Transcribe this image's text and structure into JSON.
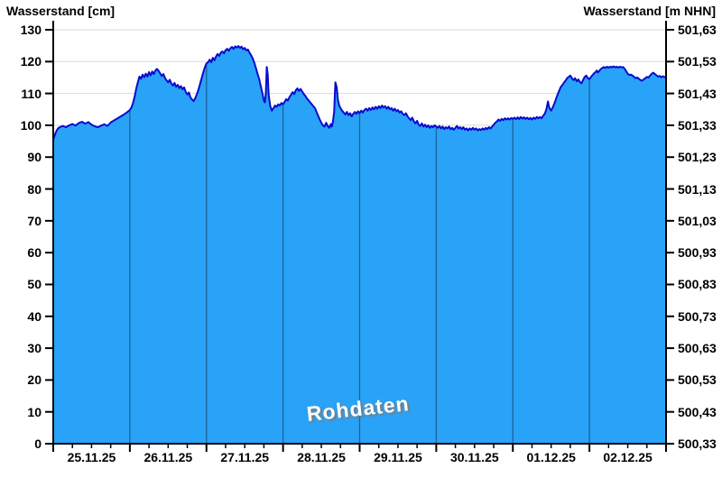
{
  "header": {
    "left_axis_title": "Wasserstand [cm]",
    "right_axis_title": "Wasserstand [m NHN]"
  },
  "watermark": "Rohdaten",
  "colors": {
    "area_fill": "#29a3f7",
    "line_stroke": "#0a0ace",
    "day_gridline": "rgba(20,45,75,0.55)",
    "h_gridline": "#d9d9d9",
    "axis": "#000000",
    "watermark_text": "#ffffff",
    "watermark_shadow": "#7a7a7a"
  },
  "chart_data": {
    "type": "area",
    "title": "",
    "left_axis_label": "Wasserstand [cm]",
    "right_axis_label": "Wasserstand [m NHN]",
    "x_unit": "hours since 25.11.25 00:00",
    "xlim": [
      0,
      192
    ],
    "ylim_left_cm": [
      0,
      130
    ],
    "ylim_right_m_nhn": [
      500.33,
      501.63
    ],
    "grid": "horizontal-light, vertical day separators inside area",
    "legend": "none",
    "left_tick_values_cm": [
      0,
      10,
      20,
      30,
      40,
      50,
      60,
      70,
      80,
      90,
      100,
      110,
      120,
      130
    ],
    "right_tick_labels_m_nhn": [
      "500,33",
      "500,43",
      "500,53",
      "500,63",
      "500,73",
      "500,83",
      "500,93",
      "501,03",
      "501,13",
      "501,23",
      "501,33",
      "501,43",
      "501,53",
      "501,63"
    ],
    "x_labels": [
      "25.11.25",
      "26.11.25",
      "27.11.25",
      "28.11.25",
      "29.11.25",
      "30.11.25",
      "01.12.25",
      "02.12.25"
    ],
    "x_day_boundaries_hours": [
      0,
      24,
      48,
      72,
      96,
      120,
      144,
      168,
      192
    ],
    "x_minor_tick_step_hours": 6,
    "points": [
      [
        0,
        95.5
      ],
      [
        0.5,
        97.0
      ],
      [
        1,
        98.2
      ],
      [
        1.5,
        99.0
      ],
      [
        2,
        99.4
      ],
      [
        3,
        99.8
      ],
      [
        4,
        99.4
      ],
      [
        5,
        100.0
      ],
      [
        6,
        100.4
      ],
      [
        7,
        99.9
      ],
      [
        8,
        100.7
      ],
      [
        9,
        101.1
      ],
      [
        10,
        100.5
      ],
      [
        11,
        101.0
      ],
      [
        12,
        100.2
      ],
      [
        13,
        99.7
      ],
      [
        14,
        99.4
      ],
      [
        15,
        99.9
      ],
      [
        16,
        100.3
      ],
      [
        17,
        99.8
      ],
      [
        18,
        100.9
      ],
      [
        19,
        101.5
      ],
      [
        20,
        102.1
      ],
      [
        21,
        102.7
      ],
      [
        22,
        103.3
      ],
      [
        23,
        104.0
      ],
      [
        24,
        104.8
      ],
      [
        24.5,
        105.6
      ],
      [
        25,
        107.0
      ],
      [
        25.5,
        109.0
      ],
      [
        26,
        111.5
      ],
      [
        26.5,
        113.5
      ],
      [
        27,
        115.3
      ],
      [
        27.5,
        114.6
      ],
      [
        28,
        115.9
      ],
      [
        28.5,
        115.1
      ],
      [
        29,
        116.2
      ],
      [
        29.5,
        115.3
      ],
      [
        30,
        116.7
      ],
      [
        30.5,
        115.7
      ],
      [
        31,
        116.9
      ],
      [
        31.5,
        116.1
      ],
      [
        32,
        117.2
      ],
      [
        32.5,
        117.7
      ],
      [
        33,
        117.1
      ],
      [
        33.5,
        116.3
      ],
      [
        34,
        115.5
      ],
      [
        34.5,
        116.1
      ],
      [
        35,
        114.9
      ],
      [
        35.5,
        114.1
      ],
      [
        36,
        113.5
      ],
      [
        36.5,
        114.3
      ],
      [
        37,
        113.1
      ],
      [
        37.5,
        112.5
      ],
      [
        38,
        113.3
      ],
      [
        38.5,
        112.1
      ],
      [
        39,
        112.7
      ],
      [
        39.5,
        111.7
      ],
      [
        40,
        112.3
      ],
      [
        40.5,
        111.3
      ],
      [
        41,
        111.9
      ],
      [
        41.5,
        110.5
      ],
      [
        42,
        109.7
      ],
      [
        42.5,
        110.3
      ],
      [
        43,
        108.7
      ],
      [
        43.5,
        108.1
      ],
      [
        44,
        107.6
      ],
      [
        44.5,
        108.5
      ],
      [
        45,
        109.8
      ],
      [
        45.5,
        111.2
      ],
      [
        46,
        113.0
      ],
      [
        46.5,
        114.8
      ],
      [
        47,
        116.6
      ],
      [
        47.5,
        118.2
      ],
      [
        48,
        119.4
      ],
      [
        48.5,
        119.8
      ],
      [
        49,
        120.6
      ],
      [
        49.5,
        119.8
      ],
      [
        50,
        121.2
      ],
      [
        50.5,
        120.4
      ],
      [
        51,
        121.6
      ],
      [
        51.5,
        122.4
      ],
      [
        52,
        121.8
      ],
      [
        52.5,
        122.8
      ],
      [
        53,
        123.2
      ],
      [
        53.5,
        122.6
      ],
      [
        54,
        123.6
      ],
      [
        54.5,
        124.0
      ],
      [
        55,
        123.4
      ],
      [
        55.5,
        124.2
      ],
      [
        56,
        124.6
      ],
      [
        56.5,
        124.0
      ],
      [
        57,
        124.8
      ],
      [
        57.5,
        124.4
      ],
      [
        58,
        124.9
      ],
      [
        58.5,
        124.3
      ],
      [
        59,
        124.7
      ],
      [
        59.5,
        123.9
      ],
      [
        60,
        124.3
      ],
      [
        60.5,
        123.5
      ],
      [
        61,
        123.8
      ],
      [
        61.5,
        122.8
      ],
      [
        62,
        122.0
      ],
      [
        62.5,
        121.0
      ],
      [
        63,
        119.6
      ],
      [
        63.5,
        118.0
      ],
      [
        64,
        116.2
      ],
      [
        64.5,
        114.6
      ],
      [
        65,
        112.4
      ],
      [
        65.5,
        110.2
      ],
      [
        66,
        107.8
      ],
      [
        66.3,
        107.2
      ],
      [
        66.6,
        110.0
      ],
      [
        66.9,
        118.3
      ],
      [
        67.2,
        116.0
      ],
      [
        67.5,
        109.5
      ],
      [
        68,
        106.0
      ],
      [
        68.5,
        104.6
      ],
      [
        69,
        105.4
      ],
      [
        69.5,
        106.2
      ],
      [
        70,
        105.8
      ],
      [
        70.5,
        106.6
      ],
      [
        71,
        106.2
      ],
      [
        71.5,
        107.0
      ],
      [
        72,
        106.6
      ],
      [
        72.5,
        107.4
      ],
      [
        73,
        108.2
      ],
      [
        73.5,
        107.8
      ],
      [
        74,
        108.8
      ],
      [
        74.5,
        109.6
      ],
      [
        75,
        110.4
      ],
      [
        75.5,
        109.8
      ],
      [
        76,
        111.0
      ],
      [
        76.5,
        111.6
      ],
      [
        77,
        110.8
      ],
      [
        77.5,
        111.4
      ],
      [
        78,
        110.6
      ],
      [
        78.5,
        109.8
      ],
      [
        79,
        109.2
      ],
      [
        79.5,
        108.4
      ],
      [
        80,
        107.8
      ],
      [
        80.5,
        107.2
      ],
      [
        81,
        106.6
      ],
      [
        81.5,
        106.0
      ],
      [
        82,
        105.4
      ],
      [
        82.5,
        104.2
      ],
      [
        83,
        103.0
      ],
      [
        83.5,
        101.8
      ],
      [
        84,
        100.8
      ],
      [
        84.5,
        100.0
      ],
      [
        85,
        99.6
      ],
      [
        85.5,
        100.8
      ],
      [
        86,
        99.8
      ],
      [
        86.5,
        99.2
      ],
      [
        87,
        100.4
      ],
      [
        87.3,
        99.6
      ],
      [
        87.6,
        101.0
      ],
      [
        88,
        104.0
      ],
      [
        88.4,
        113.5
      ],
      [
        88.8,
        112.0
      ],
      [
        89.2,
        108.0
      ],
      [
        89.6,
        106.2
      ],
      [
        90,
        105.4
      ],
      [
        90.5,
        104.6
      ],
      [
        91,
        104.0
      ],
      [
        91.5,
        103.4
      ],
      [
        92,
        104.2
      ],
      [
        92.5,
        103.2
      ],
      [
        93,
        103.8
      ],
      [
        93.5,
        102.8
      ],
      [
        94,
        103.6
      ],
      [
        94.5,
        104.2
      ],
      [
        95,
        103.6
      ],
      [
        95.5,
        104.4
      ],
      [
        96,
        103.8
      ],
      [
        96.5,
        104.6
      ],
      [
        97,
        104.0
      ],
      [
        97.5,
        104.8
      ],
      [
        98,
        105.2
      ],
      [
        98.5,
        104.6
      ],
      [
        99,
        105.4
      ],
      [
        99.5,
        104.8
      ],
      [
        100,
        105.6
      ],
      [
        100.5,
        105.0
      ],
      [
        101,
        105.8
      ],
      [
        101.5,
        105.2
      ],
      [
        102,
        106.0
      ],
      [
        102.5,
        105.4
      ],
      [
        103,
        106.2
      ],
      [
        103.5,
        105.6
      ],
      [
        104,
        106.0
      ],
      [
        104.5,
        105.2
      ],
      [
        105,
        105.8
      ],
      [
        105.5,
        105.0
      ],
      [
        106,
        105.4
      ],
      [
        106.5,
        104.6
      ],
      [
        107,
        105.2
      ],
      [
        107.5,
        104.4
      ],
      [
        108,
        104.8
      ],
      [
        108.5,
        104.0
      ],
      [
        109,
        104.4
      ],
      [
        109.5,
        103.6
      ],
      [
        110,
        103.2
      ],
      [
        110.5,
        103.8
      ],
      [
        111,
        102.8
      ],
      [
        111.5,
        102.2
      ],
      [
        112,
        101.6
      ],
      [
        112.5,
        102.4
      ],
      [
        113,
        101.2
      ],
      [
        113.5,
        100.6
      ],
      [
        114,
        101.4
      ],
      [
        114.5,
        100.2
      ],
      [
        115,
        99.8
      ],
      [
        115.5,
        100.6
      ],
      [
        116,
        99.6
      ],
      [
        116.5,
        100.2
      ],
      [
        117,
        99.4
      ],
      [
        117.5,
        100.0
      ],
      [
        118,
        99.2
      ],
      [
        118.5,
        99.8
      ],
      [
        119,
        99.4
      ],
      [
        119.5,
        100.0
      ],
      [
        120,
        99.6
      ],
      [
        120.5,
        99.2
      ],
      [
        121,
        99.8
      ],
      [
        121.5,
        99.0
      ],
      [
        122,
        99.6
      ],
      [
        122.5,
        98.8
      ],
      [
        123,
        99.4
      ],
      [
        123.5,
        99.0
      ],
      [
        124,
        99.6
      ],
      [
        124.5,
        98.8
      ],
      [
        125,
        99.2
      ],
      [
        125.5,
        98.6
      ],
      [
        126,
        99.2
      ],
      [
        126.5,
        99.8
      ],
      [
        127,
        99.0
      ],
      [
        127.5,
        99.4
      ],
      [
        128,
        98.8
      ],
      [
        128.5,
        99.4
      ],
      [
        129,
        98.6
      ],
      [
        129.5,
        99.0
      ],
      [
        130,
        98.4
      ],
      [
        130.5,
        99.0
      ],
      [
        131,
        98.6
      ],
      [
        131.5,
        99.2
      ],
      [
        132,
        98.6
      ],
      [
        132.5,
        99.0
      ],
      [
        133,
        98.4
      ],
      [
        133.5,
        98.8
      ],
      [
        134,
        98.5
      ],
      [
        134.5,
        99.0
      ],
      [
        135,
        98.6
      ],
      [
        135.5,
        99.2
      ],
      [
        136,
        98.8
      ],
      [
        136.5,
        99.4
      ],
      [
        137,
        99.0
      ],
      [
        137.5,
        99.6
      ],
      [
        138,
        100.2
      ],
      [
        138.5,
        100.8
      ],
      [
        139,
        101.2
      ],
      [
        139.5,
        101.8
      ],
      [
        140,
        101.4
      ],
      [
        140.5,
        102.0
      ],
      [
        141,
        101.6
      ],
      [
        141.5,
        102.2
      ],
      [
        142,
        101.8
      ],
      [
        142.5,
        102.2
      ],
      [
        143,
        101.8
      ],
      [
        143.5,
        102.3
      ],
      [
        144,
        102.0
      ],
      [
        144.5,
        102.4
      ],
      [
        145,
        101.9
      ],
      [
        145.5,
        102.5
      ],
      [
        146,
        102.0
      ],
      [
        146.5,
        102.6
      ],
      [
        147,
        102.1
      ],
      [
        147.5,
        102.5
      ],
      [
        148,
        102.0
      ],
      [
        148.5,
        102.4
      ],
      [
        149,
        101.9
      ],
      [
        149.5,
        102.3
      ],
      [
        150,
        101.8
      ],
      [
        150.5,
        102.4
      ],
      [
        151,
        102.0
      ],
      [
        151.5,
        102.6
      ],
      [
        152,
        102.2
      ],
      [
        152.5,
        102.6
      ],
      [
        153,
        102.2
      ],
      [
        153.5,
        103.0
      ],
      [
        154,
        103.6
      ],
      [
        154.5,
        105.0
      ],
      [
        155,
        107.5
      ],
      [
        155.4,
        105.6
      ],
      [
        156,
        104.6
      ],
      [
        156.5,
        105.6
      ],
      [
        157,
        106.8
      ],
      [
        157.5,
        108.2
      ],
      [
        158,
        109.6
      ],
      [
        158.5,
        110.8
      ],
      [
        159,
        112.0
      ],
      [
        159.5,
        112.6
      ],
      [
        160,
        113.4
      ],
      [
        160.5,
        114.0
      ],
      [
        161,
        114.8
      ],
      [
        161.5,
        115.2
      ],
      [
        162,
        115.6
      ],
      [
        162.5,
        114.8
      ],
      [
        163,
        114.2
      ],
      [
        163.5,
        114.8
      ],
      [
        164,
        113.8
      ],
      [
        164.5,
        114.4
      ],
      [
        165,
        113.6
      ],
      [
        165.5,
        113.2
      ],
      [
        166,
        114.2
      ],
      [
        166.5,
        115.2
      ],
      [
        167,
        115.6
      ],
      [
        167.5,
        114.8
      ],
      [
        168,
        114.5
      ],
      [
        168.5,
        115.2
      ],
      [
        169,
        115.8
      ],
      [
        169.5,
        116.4
      ],
      [
        170,
        116.8
      ],
      [
        170.3,
        117.2
      ],
      [
        170.6,
        116.6
      ],
      [
        171,
        117.0
      ],
      [
        171.5,
        117.6
      ],
      [
        172,
        118.0
      ],
      [
        172.5,
        118.3
      ],
      [
        173,
        118.0
      ],
      [
        173.5,
        118.4
      ],
      [
        174,
        118.1
      ],
      [
        174.5,
        118.4
      ],
      [
        175,
        118.2
      ],
      [
        175.5,
        118.5
      ],
      [
        176,
        118.2
      ],
      [
        176.5,
        118.4
      ],
      [
        177,
        118.1
      ],
      [
        177.5,
        118.4
      ],
      [
        178,
        118.2
      ],
      [
        178.5,
        118.3
      ],
      [
        179,
        117.8
      ],
      [
        179.5,
        117.0
      ],
      [
        180,
        116.2
      ],
      [
        180.5,
        115.8
      ],
      [
        181,
        115.9
      ],
      [
        181.5,
        115.6
      ],
      [
        182,
        115.2
      ],
      [
        182.5,
        114.8
      ],
      [
        183,
        115.0
      ],
      [
        183.5,
        114.6
      ],
      [
        184,
        114.2
      ],
      [
        184.5,
        114.0
      ],
      [
        185,
        114.4
      ],
      [
        185.5,
        114.8
      ],
      [
        186,
        115.2
      ],
      [
        186.5,
        115.0
      ],
      [
        187,
        115.6
      ],
      [
        187.5,
        116.2
      ],
      [
        188,
        116.5
      ],
      [
        188.5,
        116.1
      ],
      [
        189,
        115.7
      ],
      [
        189.5,
        115.3
      ],
      [
        190,
        115.5
      ],
      [
        190.5,
        115.1
      ],
      [
        191,
        115.4
      ],
      [
        191.4,
        115.2
      ],
      [
        192,
        115.0
      ]
    ]
  }
}
